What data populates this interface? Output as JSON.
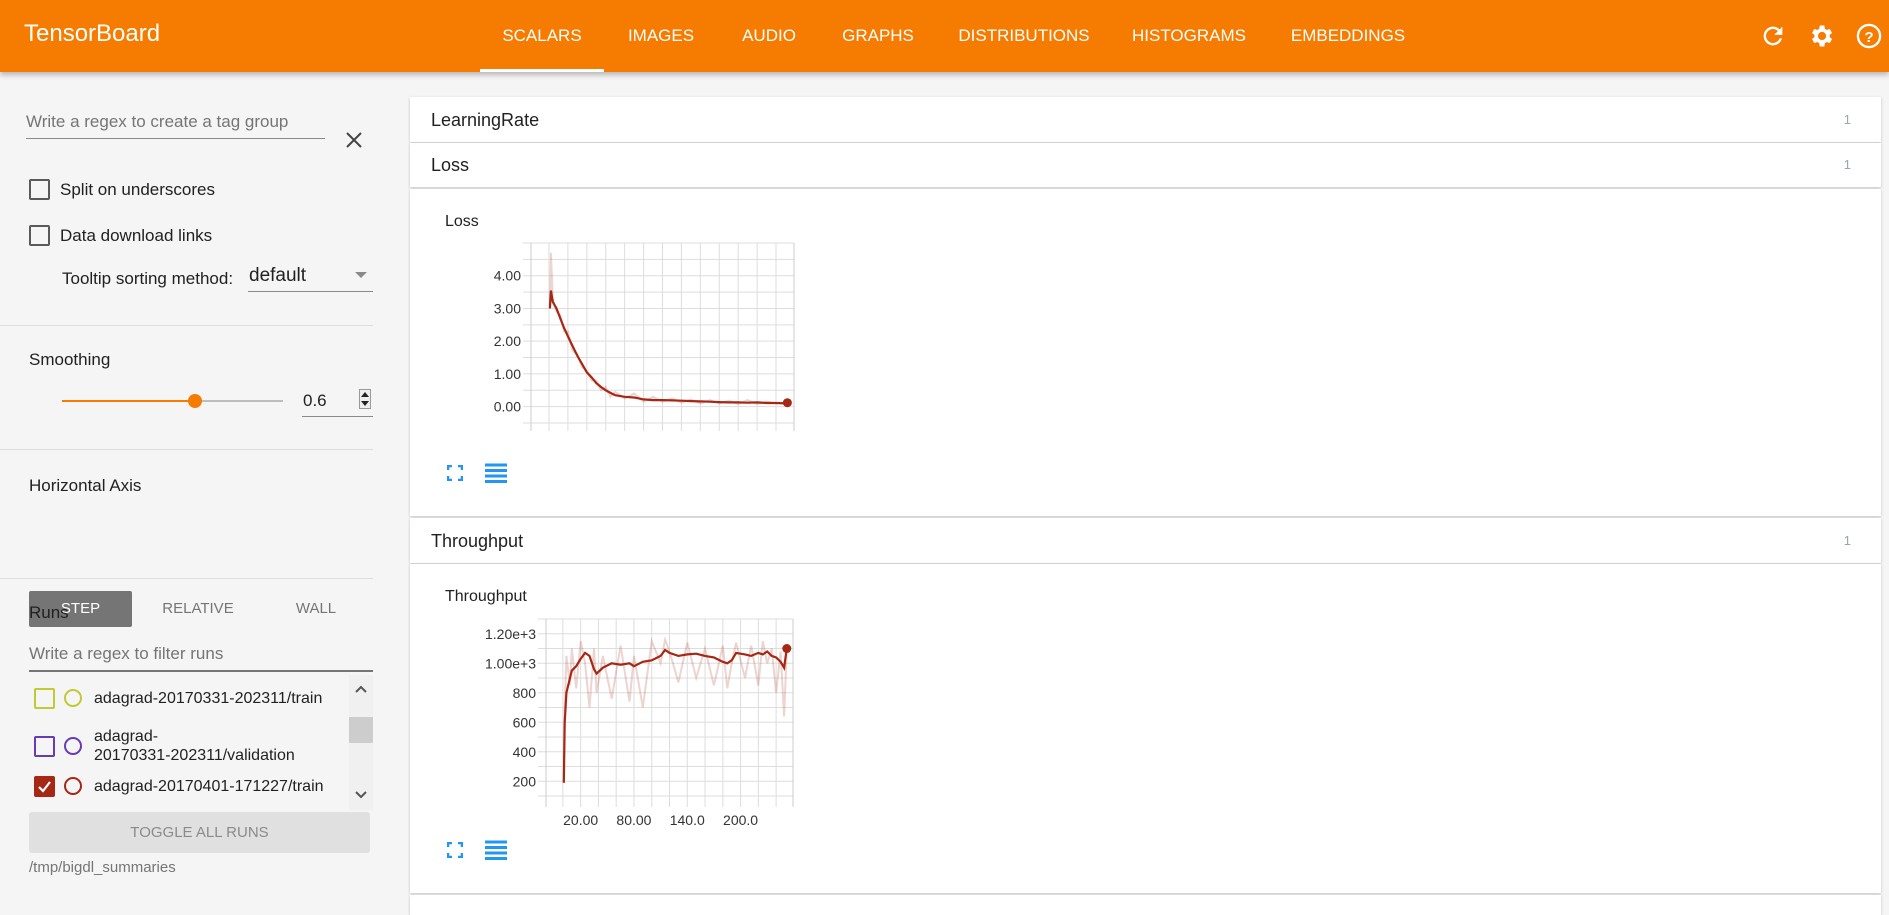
{
  "header": {
    "title": "TensorBoard",
    "tabs": [
      "SCALARS",
      "IMAGES",
      "AUDIO",
      "GRAPHS",
      "DISTRIBUTIONS",
      "HISTOGRAMS",
      "EMBEDDINGS"
    ],
    "active_tab": "SCALARS",
    "icons": [
      "refresh-icon",
      "settings-icon",
      "help-icon"
    ],
    "accent": "#f57c00"
  },
  "sidebar": {
    "tag_group_placeholder": "Write a regex to create a tag group",
    "split_underscores": {
      "label": "Split on underscores",
      "checked": false
    },
    "download_links": {
      "label": "Data download links",
      "checked": false
    },
    "tooltip_sort": {
      "label": "Tooltip sorting method:",
      "value": "default"
    },
    "smoothing": {
      "label": "Smoothing",
      "value": "0.6",
      "level": 0.6
    },
    "horizontal_axis": {
      "label": "Horizontal Axis",
      "options": [
        "STEP",
        "RELATIVE",
        "WALL"
      ],
      "selected": "STEP"
    },
    "runs": {
      "label": "Runs",
      "filter_placeholder": "Write a regex to filter runs",
      "items": [
        {
          "line1": "adagrad-20170331-202311/train",
          "line2": "",
          "color": "#c0ca33",
          "checked": false
        },
        {
          "line1": "adagrad-",
          "line2": "20170331-202311/validation",
          "color": "#673ab7",
          "checked": false
        },
        {
          "line1": "adagrad-20170401-171227/train",
          "line2": "",
          "color": "#a52714",
          "checked": true
        }
      ],
      "toggle_all": "TOGGLE ALL RUNS"
    },
    "logdir": "/tmp/bigdl_summaries"
  },
  "main": {
    "groups": [
      {
        "title": "LearningRate",
        "count": "1"
      },
      {
        "title": "Loss",
        "count": "1"
      },
      {
        "title": "Throughput",
        "count": "1"
      }
    ]
  },
  "chart_data": [
    {
      "type": "line",
      "title": "Loss",
      "xlabel": "",
      "ylabel": "",
      "xlim": [
        -19,
        259
      ],
      "ylim": [
        -0.5,
        5.0
      ],
      "yticks": [
        "0.00",
        "1.00",
        "2.00",
        "3.00",
        "4.00"
      ],
      "ytick_values": [
        0,
        1,
        2,
        3,
        4
      ],
      "xticks": [],
      "xtick_values": [],
      "grid": true,
      "color": "#a52714",
      "x": [
        1,
        2,
        4,
        8,
        12,
        16,
        20,
        25,
        30,
        35,
        40,
        45,
        50,
        55,
        60,
        65,
        70,
        80,
        90,
        100,
        110,
        120,
        130,
        140,
        150,
        160,
        170,
        180,
        190,
        200,
        210,
        220,
        230,
        240,
        250,
        252
      ],
      "smoothed": [
        3.0,
        3.55,
        3.2,
        3.0,
        2.7,
        2.4,
        2.15,
        1.85,
        1.55,
        1.3,
        1.05,
        0.9,
        0.72,
        0.6,
        0.5,
        0.42,
        0.35,
        0.3,
        0.28,
        0.22,
        0.2,
        0.2,
        0.19,
        0.18,
        0.17,
        0.16,
        0.15,
        0.14,
        0.13,
        0.13,
        0.12,
        0.13,
        0.11,
        0.11,
        0.1,
        0.12
      ],
      "raw": [
        3.0,
        4.7,
        3.3,
        2.9,
        2.8,
        2.3,
        2.3,
        1.7,
        1.6,
        1.2,
        1.1,
        0.8,
        0.8,
        0.5,
        0.6,
        0.3,
        0.45,
        0.25,
        0.4,
        0.15,
        0.3,
        0.15,
        0.25,
        0.12,
        0.22,
        0.1,
        0.2,
        0.1,
        0.18,
        0.08,
        0.2,
        0.08,
        0.15,
        0.1,
        0.12,
        0.12
      ]
    },
    {
      "type": "line",
      "title": "Throughput",
      "xlabel": "",
      "ylabel": "",
      "xlim": [
        -19,
        259
      ],
      "ylim": [
        80,
        1300
      ],
      "yticks": [
        "200",
        "400",
        "600",
        "800",
        "1.00e+3",
        "1.20e+3"
      ],
      "ytick_values": [
        200,
        400,
        600,
        800,
        1000,
        1200
      ],
      "xticks": [
        "20.00",
        "80.00",
        "140.0",
        "200.0"
      ],
      "xtick_values": [
        20,
        80,
        140,
        200
      ],
      "grid": true,
      "color": "#a52714",
      "x": [
        1,
        2,
        4,
        8,
        10,
        15,
        20,
        25,
        30,
        35,
        38,
        45,
        55,
        65,
        75,
        80,
        90,
        100,
        110,
        115,
        120,
        130,
        140,
        150,
        160,
        170,
        180,
        185,
        190,
        195,
        205,
        212,
        220,
        225,
        230,
        235,
        240,
        245,
        249,
        252
      ],
      "smoothed": [
        190,
        600,
        800,
        900,
        950,
        980,
        1030,
        1070,
        1050,
        960,
        930,
        970,
        1000,
        990,
        1000,
        980,
        1010,
        1020,
        1050,
        1090,
        1070,
        1050,
        1060,
        1065,
        1050,
        1040,
        1010,
        1000,
        1020,
        1070,
        1060,
        1050,
        1070,
        1060,
        1080,
        1050,
        1040,
        1010,
        970,
        1100
      ],
      "raw": [
        190,
        700,
        1050,
        850,
        1100,
        830,
        1150,
        1000,
        700,
        1100,
        800,
        1050,
        760,
        1120,
        740,
        1050,
        700,
        1150,
        1000,
        1160,
        1080,
        870,
        1140,
        900,
        1100,
        850,
        1120,
        830,
        1000,
        1140,
        900,
        1120,
        850,
        1150,
        1000,
        1100,
        800,
        1080,
        640,
        1100
      ]
    }
  ]
}
